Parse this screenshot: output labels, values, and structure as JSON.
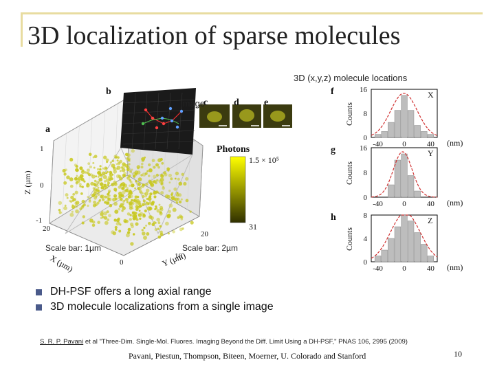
{
  "slide": {
    "title": "3D localization of sparse molecules",
    "annotation_locations": "3D (x,y,z) molecule locations",
    "annotation_image": "Image",
    "scale_bar_1": "Scale bar: 1µm",
    "scale_bar_2": "Scale bar: 2µm",
    "bullets": [
      "DH-PSF offers a long axial range",
      "3D molecule localizations from a single image"
    ],
    "reference_authors": "S. R. P. Pavani",
    "reference_rest": " et al \"Three-Dim. Single-Mol. Fluores. Imaging Beyond the Diff. Limit Using a DH-PSF,\" PNAS 106, 2995 (2009)",
    "footer_authors": "Pavani, Piestun, Thompson, Biteen, Moerner, U. Colorado and Stanford",
    "page_number": "10"
  },
  "figure": {
    "panel_labels": [
      "a",
      "b",
      "c",
      "d",
      "e",
      "f",
      "g",
      "h"
    ],
    "z_axis_label": "Z (µm)",
    "z_ticks": [
      "1",
      "0",
      "-1"
    ],
    "x_axis_label": "X (µm)",
    "x_ticks": [
      "20",
      "10",
      "0"
    ],
    "y_axis_label": "Y (µm)",
    "y_ticks": [
      "10",
      "20"
    ],
    "colorbar_title": "Photons",
    "colorbar_max": "1.5 × 10⁵",
    "colorbar_min": "31",
    "colors": {
      "marker": "#c8c820",
      "photon_high": "#ffff00",
      "photon_low": "#303000",
      "fit_curve": "#d03030",
      "bar_fill": "#bdbdbd"
    }
  },
  "chart_data": [
    {
      "type": "bar",
      "title": "X",
      "xlabel": "(nm)",
      "ylabel": "Counts",
      "x": [
        -40,
        -30,
        -20,
        -10,
        0,
        10,
        20,
        30,
        40
      ],
      "values": [
        1,
        2,
        5,
        9,
        14,
        9,
        4,
        2,
        1
      ],
      "ylim": [
        0,
        16
      ],
      "yticks": [
        0,
        8,
        16
      ],
      "xticks": [
        -40,
        0,
        40
      ]
    },
    {
      "type": "bar",
      "title": "Y",
      "xlabel": "(nm)",
      "ylabel": "Counts",
      "x": [
        -20,
        -10,
        0,
        10,
        20
      ],
      "values": [
        4,
        12,
        14,
        7,
        2
      ],
      "ylim": [
        0,
        16
      ],
      "yticks": [
        0,
        8,
        16
      ],
      "xticks": [
        -40,
        0,
        40
      ]
    },
    {
      "type": "bar",
      "title": "Z",
      "xlabel": "(nm)",
      "ylabel": "Counts",
      "x": [
        -40,
        -30,
        -20,
        -10,
        0,
        10,
        20,
        30,
        40
      ],
      "values": [
        1,
        2,
        4,
        6,
        8,
        7,
        5,
        3,
        1
      ],
      "ylim": [
        0,
        8
      ],
      "yticks": [
        0,
        4,
        8
      ],
      "xticks": [
        -40,
        0,
        40
      ]
    }
  ]
}
